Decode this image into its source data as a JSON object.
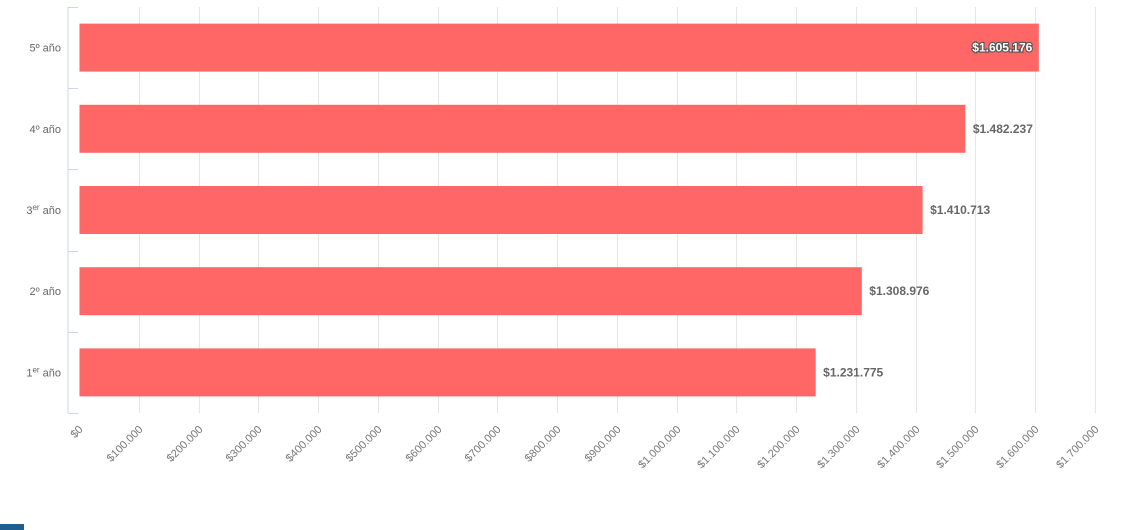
{
  "colors": {
    "bar": "#ff6666",
    "grid": "#e6e6e6",
    "axis": "#ccd6eb",
    "accent": "#1f5f8f"
  },
  "chart_data": {
    "type": "bar",
    "orientation": "horizontal",
    "categories": [
      "5º año",
      "4º año",
      "3er año",
      "2º año",
      "1er año"
    ],
    "category_labels": [
      {
        "base": "5º año",
        "sup": ""
      },
      {
        "base": "4º año",
        "sup": ""
      },
      {
        "base": "3",
        "sup": "er",
        "suffix": " año"
      },
      {
        "base": "2º año",
        "sup": ""
      },
      {
        "base": "1",
        "sup": "er",
        "suffix": " año"
      }
    ],
    "values": [
      1605176,
      1482237,
      1410713,
      1308976,
      1231775
    ],
    "value_labels": [
      "$1.605.176",
      "$1.482.237",
      "$1.410.713",
      "$1.308.976",
      "$1.231.775"
    ],
    "xlim": [
      0,
      1700000
    ],
    "x_ticks": [
      0,
      100000,
      200000,
      300000,
      400000,
      500000,
      600000,
      700000,
      800000,
      900000,
      1000000,
      1100000,
      1200000,
      1300000,
      1400000,
      1500000,
      1600000,
      1700000
    ],
    "x_tick_labels": [
      "$0",
      "$100.000",
      "$200.000",
      "$300.000",
      "$400.000",
      "$500.000",
      "$600.000",
      "$700.000",
      "$800.000",
      "$900.000",
      "$1.000.000",
      "$1.100.000",
      "$1.200.000",
      "$1.300.000",
      "$1.400.000",
      "$1.500.000",
      "$1.600.000",
      "$1.700.000"
    ],
    "grid": true,
    "legend": "none",
    "title": "",
    "xlabel": "",
    "ylabel": ""
  }
}
